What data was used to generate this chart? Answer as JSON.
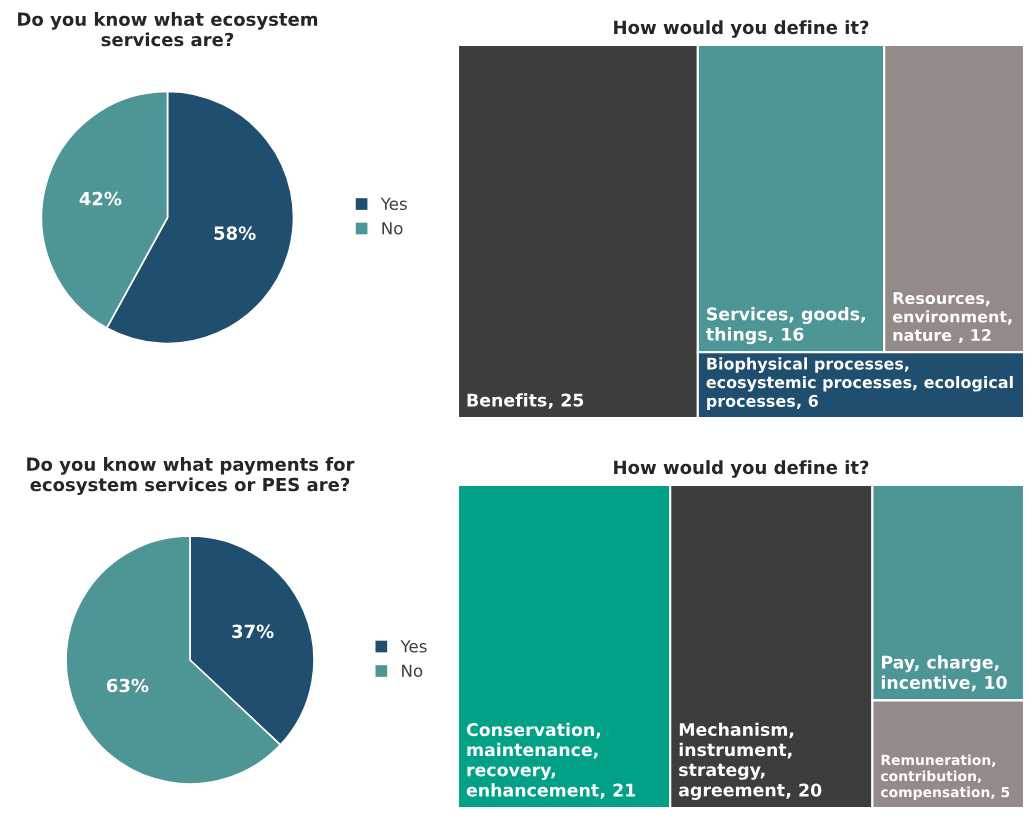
{
  "chart_data": [
    {
      "type": "pie",
      "title": "Do you know what ecosystem services are?",
      "categories": [
        "Yes",
        "No"
      ],
      "values": [
        58,
        42
      ],
      "value_labels": [
        "58%",
        "42%"
      ],
      "colors": [
        "#1f4e6e",
        "#4e9696"
      ],
      "legend": "right"
    },
    {
      "type": "other",
      "title": "How would you define it?",
      "categories": [
        "Benefits",
        "Services, goods, things",
        "Resources, environment, nature ",
        "Biophysical processes, ecosystemic processes, ecological processes"
      ],
      "values": [
        25,
        16,
        12,
        6
      ],
      "value_labels": [
        ", 25",
        ", 16",
        ", 12",
        ", 6"
      ],
      "colors": [
        "#3d3d3d",
        "#4e9696",
        "#948a89",
        "#1f4e6e"
      ]
    },
    {
      "type": "pie",
      "title": "Do you know what payments for ecosystem services or PES are?",
      "categories": [
        "Yes",
        "No"
      ],
      "values": [
        37,
        63
      ],
      "value_labels": [
        "37%",
        "63%"
      ],
      "colors": [
        "#1f4e6e",
        "#4e9696"
      ],
      "legend": "right"
    },
    {
      "type": "other",
      "title": "How would you define it?",
      "categories": [
        "Conservation, maintenance, recovery, enhancement",
        "Mechanism, instrument, strategy, agreement",
        "Pay, charge, incentive",
        "Remuneration, contribution, compensation"
      ],
      "values": [
        21,
        20,
        10,
        5
      ],
      "value_labels": [
        ", 21",
        ", 20",
        ", 10",
        ", 5"
      ],
      "colors": [
        "#00a187",
        "#3d3d3d",
        "#4e9696",
        "#948a89"
      ]
    }
  ]
}
